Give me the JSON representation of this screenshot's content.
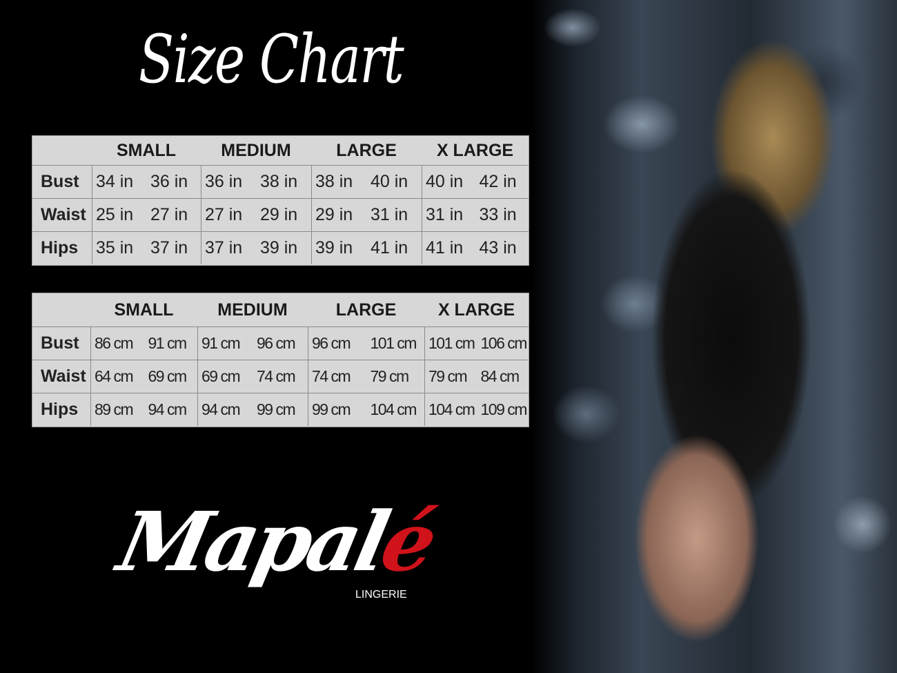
{
  "title": "Size Chart",
  "colors": {
    "table_bg": "#d7d7d7",
    "background": "#000000",
    "logo_accent": "#d0121b"
  },
  "tables": [
    {
      "unit": "in",
      "headers": [
        "SMALL",
        "MEDIUM",
        "LARGE",
        "X LARGE"
      ],
      "rows": [
        {
          "label": "Bust",
          "values": [
            "34 in",
            "36 in",
            "36 in",
            "38 in",
            "38 in",
            "40 in",
            "40 in",
            "42 in"
          ]
        },
        {
          "label": "Waist",
          "values": [
            "25 in",
            "27 in",
            "27 in",
            "29 in",
            "29 in",
            "31 in",
            "31 in",
            "33 in"
          ]
        },
        {
          "label": "Hips",
          "values": [
            "35 in",
            "37 in",
            "37 in",
            "39 in",
            "39 in",
            "41 in",
            "41 in",
            "43 in"
          ]
        }
      ]
    },
    {
      "unit": "cm",
      "headers": [
        "SMALL",
        "MEDIUM",
        "LARGE",
        "X LARGE"
      ],
      "rows": [
        {
          "label": "Bust",
          "values": [
            "86 cm",
            "91 cm",
            "91 cm",
            "96 cm",
            "96 cm",
            "101 cm",
            "101 cm",
            "106 cm"
          ]
        },
        {
          "label": "Waist",
          "values": [
            "64 cm",
            "69 cm",
            "69 cm",
            "74 cm",
            "74 cm",
            "79  cm",
            "79 cm",
            "84 cm"
          ]
        },
        {
          "label": "Hips",
          "values": [
            "89 cm",
            "94 cm",
            "94 cm",
            "99 cm",
            "99 cm",
            "104 cm",
            "104 cm",
            "109 cm"
          ]
        }
      ]
    }
  ],
  "logo": {
    "script_main": "Mapal",
    "script_accent": "é",
    "subtitle": "LINGERIE"
  }
}
